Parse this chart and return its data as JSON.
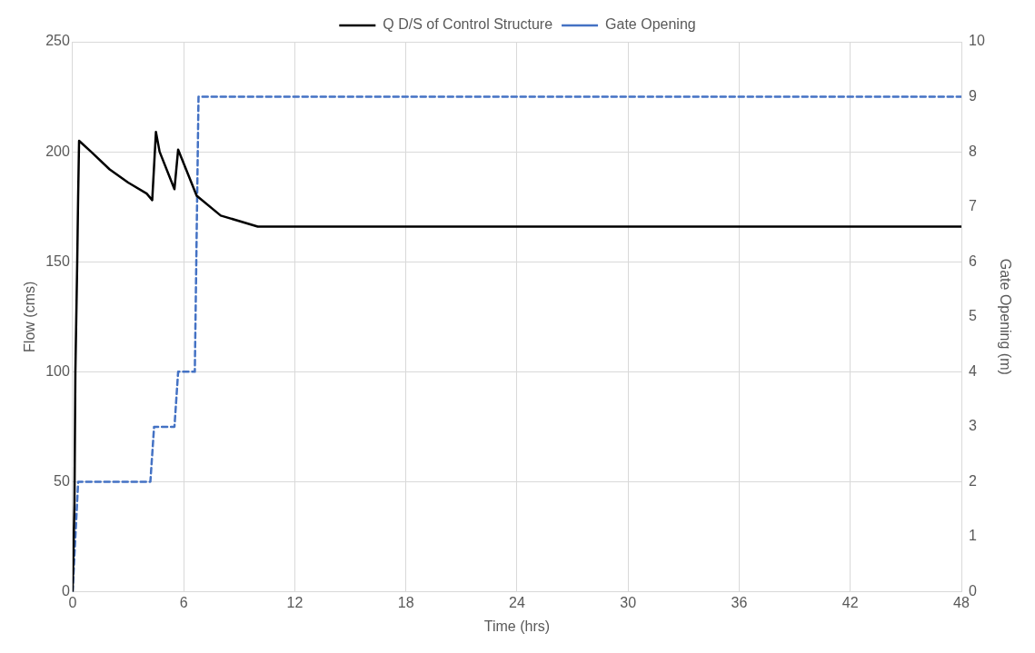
{
  "chart_data": {
    "type": "line",
    "xlabel": "Time (hrs)",
    "ylabel": "Flow (cms)",
    "y2label": "Gate Opening (m)",
    "xlim": [
      0,
      48
    ],
    "xticks": [
      0,
      6,
      12,
      18,
      24,
      30,
      36,
      42,
      48
    ],
    "ylim": [
      0,
      250
    ],
    "yticks": [
      0,
      50,
      100,
      150,
      200,
      250
    ],
    "y2lim": [
      0,
      10
    ],
    "y2ticks": [
      0,
      1,
      2,
      3,
      4,
      5,
      6,
      7,
      8,
      9,
      10
    ],
    "grid": true,
    "legend": "top",
    "marker": "none",
    "series": [
      {
        "name": "Q D/S of Control Structure",
        "color": "#000000",
        "line_style": "solid",
        "axis": "y",
        "x": [
          0,
          0.1,
          0.15,
          0.25,
          0.3,
          0.35,
          1,
          2,
          3,
          4,
          4.3,
          4.5,
          4.7,
          5.5,
          5.7,
          6.7,
          8,
          10,
          48
        ],
        "values": [
          0,
          40,
          100,
          150,
          180,
          205,
          200,
          192,
          186,
          181,
          178,
          209,
          200,
          183,
          201,
          180,
          171,
          166,
          166
        ]
      },
      {
        "name": "Gate Opening",
        "color": "#4472c4",
        "line_style": "dashed",
        "axis": "y2",
        "x": [
          0,
          0.3,
          4.2,
          4.4,
          5.5,
          5.7,
          6.6,
          6.8,
          48
        ],
        "values": [
          0,
          2,
          2,
          3,
          3,
          4,
          4,
          9,
          9
        ]
      }
    ]
  }
}
